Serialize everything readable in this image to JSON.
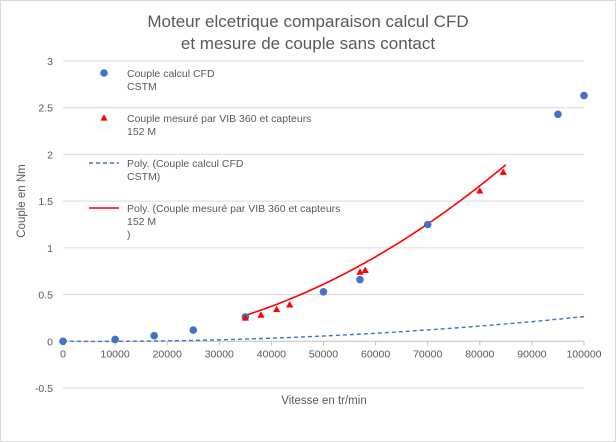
{
  "chart_data": {
    "type": "scatter",
    "title": [
      "Moteur elcetrique comparaison calcul CFD",
      "et mesure de couple sans contact"
    ],
    "xlabel": "Vitesse en tr/min",
    "ylabel": "Couple en Nm",
    "xlim": [
      0,
      100000
    ],
    "ylim": [
      -0.5,
      3
    ],
    "x_ticks": [
      0,
      10000,
      20000,
      30000,
      40000,
      50000,
      60000,
      70000,
      80000,
      90000,
      100000
    ],
    "y_ticks": [
      -0.5,
      0,
      0.5,
      1,
      1.5,
      2,
      2.5,
      3
    ],
    "x_tick_labels": [
      "0",
      "10000",
      "20000",
      "30000",
      "40000",
      "50000",
      "60000",
      "70000",
      "80000",
      "90000",
      "100000"
    ],
    "y_tick_labels": [
      "-0.5",
      "0",
      "0.5",
      "1",
      "1.5",
      "2",
      "2.5",
      "3"
    ],
    "grid": "horizontal",
    "legend_position": "top-left",
    "series": [
      {
        "name": [
          "Couple calcul CFD",
          "CSTM"
        ],
        "kind": "scatter",
        "marker": "circle",
        "color": "#4472c4",
        "x": [
          0,
          10000,
          17500,
          25000,
          35000,
          50000,
          57000,
          70000,
          95000,
          100000
        ],
        "y": [
          0,
          0.02,
          0.06,
          0.12,
          0.26,
          0.53,
          0.66,
          1.25,
          2.43,
          2.63
        ]
      },
      {
        "name": [
          "Couple mesuré par VIB 360  et capteurs",
          "152 M"
        ],
        "kind": "scatter",
        "marker": "triangle",
        "color": "#ff0000",
        "x": [
          35000,
          38000,
          41000,
          43500,
          57000,
          58000,
          80000,
          84500
        ],
        "y": [
          0.25,
          0.28,
          0.34,
          0.39,
          0.74,
          0.76,
          1.61,
          1.81
        ]
      },
      {
        "name": [
          "Poly. (Couple calcul CFD",
          "CSTM)"
        ],
        "kind": "trendline",
        "style": "dashed",
        "color": "#4472c4",
        "poly": [
          2.1e-05,
          -3.8e-07,
          3.02e-11
        ],
        "range": [
          0,
          100000
        ]
      },
      {
        "name": [
          "Poly. (Couple mesuré par VIB 360  et capteurs",
          "152 M",
          ")"
        ],
        "kind": "trendline",
        "style": "solid",
        "color": "#ff0000",
        "poly": [
          0.0,
          -2.1e-06,
          2.863e-10
        ],
        "range": [
          35000,
          85000
        ]
      }
    ]
  }
}
